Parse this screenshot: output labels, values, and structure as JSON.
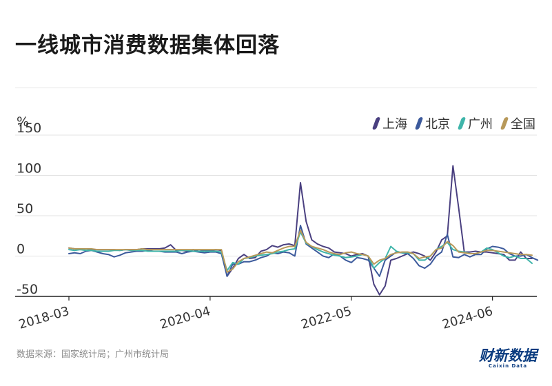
{
  "title": "一线城市消费数据集体回落",
  "source": "数据来源：国家统计局；广州市统计局",
  "brand": {
    "cn": "财新数据",
    "en": "Caixin Data"
  },
  "chart_data": {
    "type": "line",
    "title": "一线城市消费数据集体回落",
    "ylabel": "%",
    "ylim": [
      -50,
      150
    ],
    "yticks": [
      -50,
      0,
      50,
      100,
      150
    ],
    "xticks": [
      "2018-03",
      "2020-04",
      "2022-05",
      "2024-06"
    ],
    "x_start": "2018-03",
    "x_end": "2024-06",
    "legend_position": "top-right",
    "grid": true,
    "series": [
      {
        "name": "上海",
        "color": "#4a4080",
        "values": [
          10,
          9,
          8,
          9,
          8,
          8,
          8,
          8,
          8,
          7,
          8,
          8,
          8,
          9,
          9,
          9,
          9,
          10,
          14,
          7,
          7,
          6,
          8,
          6,
          7,
          7,
          8,
          7,
          -25,
          -15,
          -3,
          2,
          -3,
          -2,
          6,
          8,
          13,
          11,
          14,
          15,
          13,
          91,
          43,
          20,
          15,
          12,
          10,
          5,
          4,
          3,
          0,
          2,
          3,
          0,
          -35,
          -48,
          -37,
          -5,
          -3,
          0,
          3,
          5,
          3,
          0,
          -5,
          5,
          20,
          25,
          112,
          60,
          5,
          5,
          6,
          5,
          5,
          4,
          3,
          2,
          -5,
          -5,
          5,
          -3,
          -3
        ]
      },
      {
        "name": "北京",
        "color": "#3c5a9c",
        "values": [
          3,
          4,
          3,
          6,
          7,
          5,
          3,
          2,
          -1,
          1,
          4,
          5,
          6,
          6,
          7,
          6,
          6,
          5,
          5,
          5,
          3,
          5,
          6,
          5,
          4,
          5,
          5,
          3,
          -25,
          -10,
          -10,
          -7,
          -7,
          -5,
          -2,
          0,
          4,
          3,
          5,
          4,
          0,
          38,
          15,
          10,
          5,
          0,
          -2,
          3,
          0,
          -5,
          -8,
          -2,
          -3,
          -5,
          -15,
          -25,
          -5,
          0,
          5,
          4,
          3,
          -3,
          -12,
          -15,
          -10,
          0,
          5,
          27,
          -1,
          -2,
          2,
          -1,
          2,
          2,
          9,
          12,
          11,
          9,
          3,
          0,
          0,
          2,
          -2,
          -5
        ]
      },
      {
        "name": "广州",
        "color": "#3fb5aa",
        "values": [
          8,
          7,
          8,
          7,
          7,
          6,
          6,
          6,
          7,
          7,
          8,
          7,
          7,
          7,
          6,
          6,
          6,
          6,
          6,
          6,
          7,
          7,
          6,
          6,
          6,
          6,
          6,
          5,
          -18,
          -8,
          -10,
          -3,
          -2,
          0,
          1,
          2,
          3,
          5,
          6,
          8,
          9,
          30,
          16,
          12,
          8,
          5,
          3,
          1,
          0,
          -2,
          -1,
          0,
          2,
          0,
          -15,
          -8,
          -3,
          12,
          6,
          4,
          4,
          3,
          -5,
          -5,
          0,
          8,
          12,
          17,
          8,
          6,
          5,
          3,
          3,
          5,
          10,
          8,
          4,
          0,
          -2,
          0,
          -3,
          -3,
          -9
        ]
      },
      {
        "name": "全国",
        "color": "#b8995a",
        "values": [
          10,
          9,
          9,
          9,
          9,
          8,
          8,
          8,
          8,
          8,
          8,
          8,
          8,
          9,
          8,
          8,
          8,
          8,
          8,
          8,
          8,
          8,
          8,
          8,
          8,
          8,
          8,
          8,
          -20,
          -16,
          -7,
          -3,
          -1,
          1,
          3,
          5,
          4,
          7,
          10,
          12,
          12,
          32,
          17,
          12,
          10,
          8,
          5,
          3,
          2,
          4,
          5,
          3,
          2,
          0,
          -10,
          -5,
          -3,
          2,
          4,
          5,
          5,
          3,
          -3,
          -1,
          0,
          8,
          10,
          18,
          13,
          5,
          4,
          3,
          3,
          5,
          7,
          7,
          6,
          5,
          4,
          3,
          2,
          2,
          1
        ]
      }
    ]
  }
}
